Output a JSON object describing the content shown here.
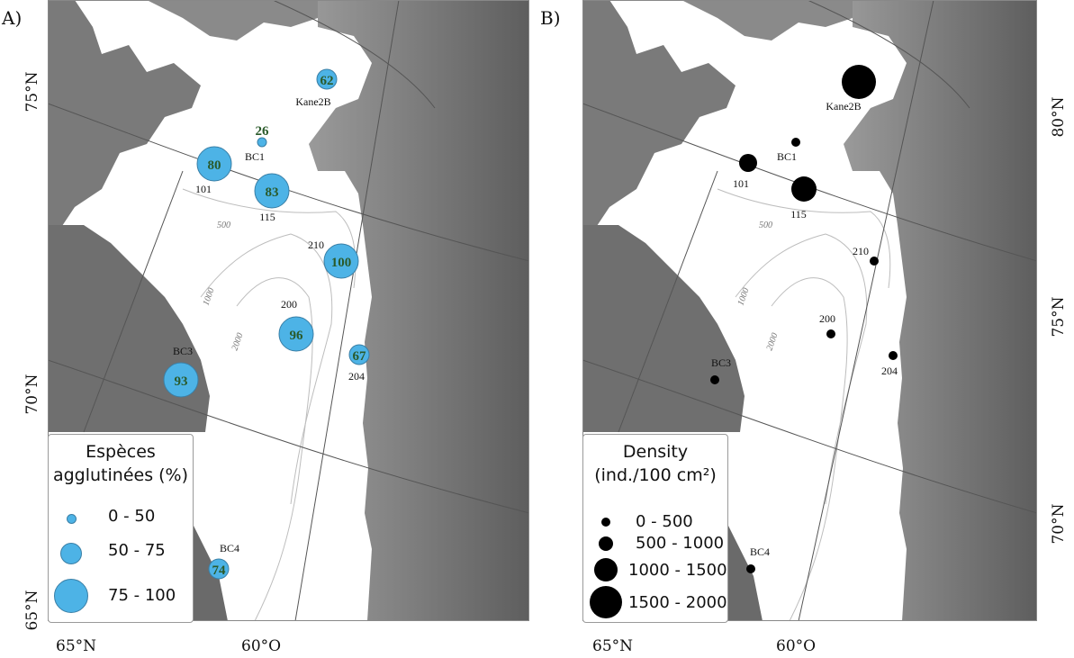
{
  "panel_a": {
    "letter": "A)",
    "lat_labels": [
      "75°N",
      "70°N",
      "65°N"
    ],
    "lon_labels": [
      "65°N",
      "60°O"
    ],
    "depth_labels": [
      "500",
      "1000",
      "2000"
    ],
    "legend": {
      "title_line1": "Espèces",
      "title_line2": "agglutinées (%)",
      "classes": [
        "0 - 50",
        "50 - 75",
        "75 - 100"
      ],
      "symbol_color": "#4db3e6"
    },
    "sites": [
      {
        "id": "Kane2B",
        "value": "62"
      },
      {
        "id": "BC1",
        "value": "26"
      },
      {
        "id": "101",
        "value": "80"
      },
      {
        "id": "115",
        "value": "83"
      },
      {
        "id": "210",
        "value": "100"
      },
      {
        "id": "200",
        "value": "96"
      },
      {
        "id": "204",
        "value": "67"
      },
      {
        "id": "BC3",
        "value": "93"
      },
      {
        "id": "BC4",
        "value": "74"
      }
    ]
  },
  "panel_b": {
    "letter": "B)",
    "lat_labels": [
      "80°N",
      "75°N",
      "70°N"
    ],
    "lon_labels": [
      "65°N",
      "60°O"
    ],
    "depth_labels": [
      "500",
      "1000",
      "2000"
    ],
    "legend": {
      "title_line1": "Density",
      "title_line2": "(ind./100 cm²)",
      "classes": [
        "0 - 500",
        "500 - 1000",
        "1000 - 1500",
        "1500 - 2000"
      ],
      "symbol_color": "#000000"
    },
    "sites": [
      {
        "id": "Kane2B",
        "density_class": "1500 - 2000"
      },
      {
        "id": "BC1",
        "density_class": "0 - 500"
      },
      {
        "id": "101",
        "density_class": "500 - 1000"
      },
      {
        "id": "115",
        "density_class": "1000 - 1500"
      },
      {
        "id": "210",
        "density_class": "0 - 500"
      },
      {
        "id": "200",
        "density_class": "0 - 500"
      },
      {
        "id": "204",
        "density_class": "0 - 500"
      },
      {
        "id": "BC3",
        "density_class": "0 - 500"
      },
      {
        "id": "BC4",
        "density_class": "0 - 500"
      }
    ]
  }
}
